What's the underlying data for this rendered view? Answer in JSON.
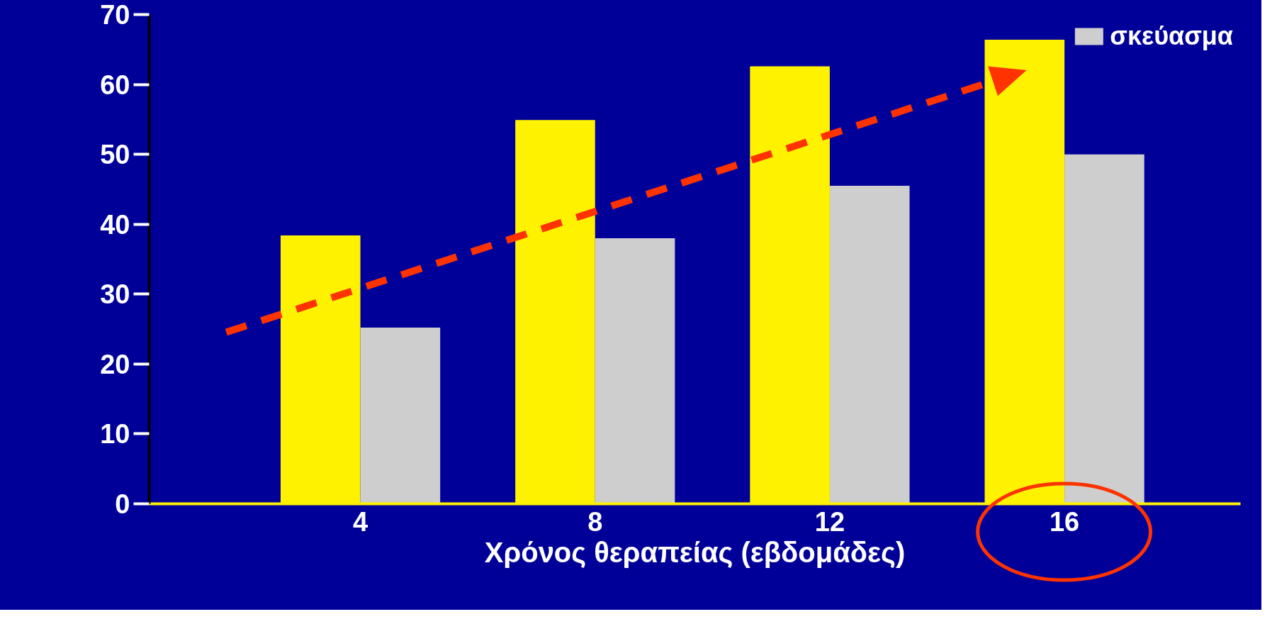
{
  "chart_data": {
    "type": "bar",
    "xlabel": "Χρόνος θεραπείας (εβδομάδες)",
    "categories": [
      "4",
      "8",
      "12",
      "16"
    ],
    "series": [
      {
        "color": "#fff200",
        "values": [
          38.4,
          54.9,
          62.6,
          66.4
        ]
      },
      {
        "name": "σκεύασμα",
        "color": "#cecece",
        "values": [
          25.2,
          38.0,
          45.5,
          50.0
        ]
      }
    ],
    "ylim": [
      0,
      70
    ],
    "yticks": [
      0,
      10,
      20,
      30,
      40,
      50,
      60,
      70
    ],
    "grid": false,
    "legend": "top right"
  }
}
